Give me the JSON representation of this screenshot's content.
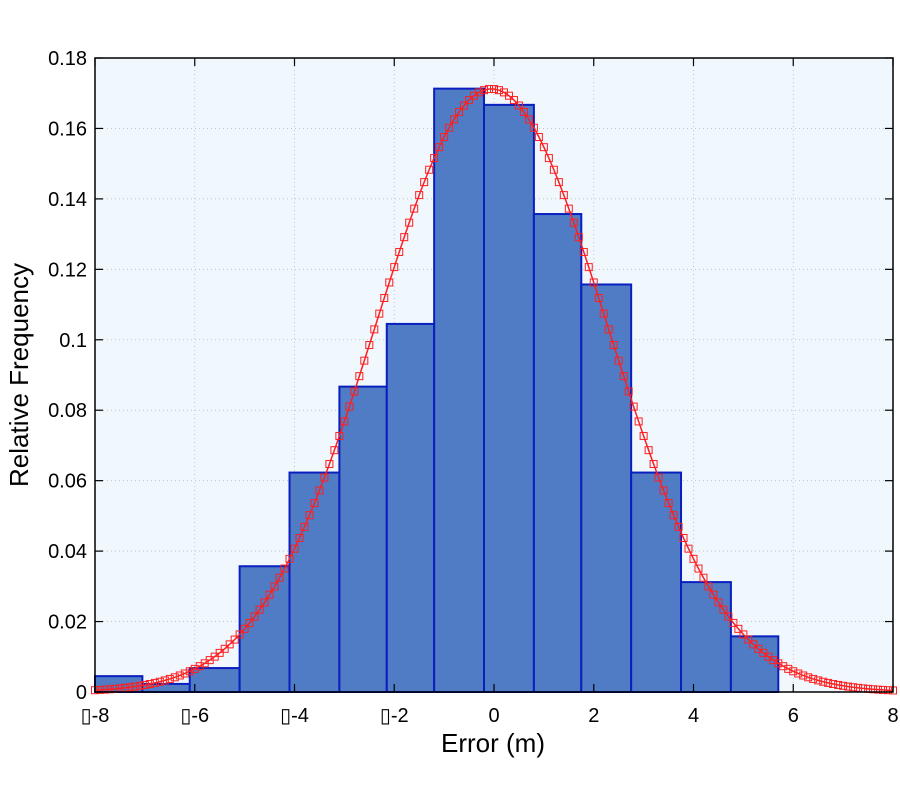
{
  "chart_data": {
    "type": "bar",
    "title": "",
    "xlabel": "Error (m)",
    "ylabel": "Relative Frequency",
    "xlim": [
      -8,
      8
    ],
    "ylim": [
      0,
      0.18
    ],
    "x_ticks": [
      -8,
      -6,
      -4,
      -2,
      0,
      2,
      4,
      6,
      8
    ],
    "x_tick_labels": [
      "▯-8",
      "▯-6",
      "▯-4",
      "▯-2",
      "0",
      "2",
      "4",
      "6",
      "8"
    ],
    "y_ticks": [
      0,
      0.02,
      0.04,
      0.06,
      0.08,
      0.1,
      0.12,
      0.14,
      0.16,
      0.18
    ],
    "y_tick_labels": [
      "0",
      "0.02",
      "0.04",
      "0.06",
      "0.08",
      "0.1",
      "0.12",
      "0.14",
      "0.16",
      "0.18"
    ],
    "grid": true,
    "histogram": {
      "bin_edges": [
        -8,
        -7.05,
        -6.1,
        -5.1,
        -4.1,
        -3.1,
        -2.15,
        -1.2,
        -0.2,
        0.8,
        1.75,
        2.75,
        3.75,
        4.75,
        5.7
      ],
      "values": [
        0.0045,
        0.0023,
        0.0068,
        0.0357,
        0.0623,
        0.0867,
        0.1045,
        0.1713,
        0.1667,
        0.1357,
        0.1157,
        0.0623,
        0.0312,
        0.0158
      ],
      "color": "#4f7cc4",
      "edge_color": "#0a1fbf"
    },
    "fit_curve": {
      "type": "normal",
      "mean": -0.05,
      "std": 2.33,
      "x_range": [
        -8,
        8
      ],
      "marker_step": 0.1,
      "color": "#ff1f1f",
      "marker": "square"
    },
    "colors": {
      "plot_background": "#f0f8fe",
      "grid": "#b9c6d2"
    }
  }
}
